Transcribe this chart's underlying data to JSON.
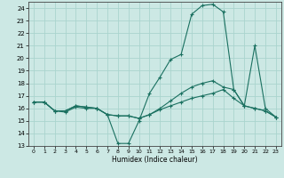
{
  "xlabel": "Humidex (Indice chaleur)",
  "background_color": "#cce8e4",
  "grid_color": "#aad4ce",
  "line_color": "#1a7060",
  "xlim": [
    -0.5,
    23.5
  ],
  "ylim": [
    13,
    24.5
  ],
  "xticks": [
    0,
    1,
    2,
    3,
    4,
    5,
    6,
    7,
    8,
    9,
    10,
    11,
    12,
    13,
    14,
    15,
    16,
    17,
    18,
    19,
    20,
    21,
    22,
    23
  ],
  "yticks": [
    13,
    14,
    15,
    16,
    17,
    18,
    19,
    20,
    21,
    22,
    23,
    24
  ],
  "line1_x": [
    0,
    1,
    2,
    3,
    4,
    5,
    6,
    7,
    8,
    9,
    10,
    11,
    12,
    13,
    14,
    15,
    16,
    17,
    18,
    19,
    20,
    21,
    22,
    23
  ],
  "line1_y": [
    16.5,
    16.5,
    15.8,
    15.8,
    16.2,
    16.1,
    16.0,
    15.5,
    13.2,
    13.2,
    15.0,
    17.2,
    18.5,
    19.9,
    20.3,
    23.5,
    24.2,
    24.3,
    23.7,
    17.5,
    16.2,
    16.0,
    15.8,
    15.3
  ],
  "line2_x": [
    0,
    1,
    2,
    3,
    4,
    5,
    6,
    7,
    8,
    9,
    10,
    11,
    12,
    13,
    14,
    15,
    16,
    17,
    18,
    19,
    20,
    21,
    22,
    23
  ],
  "line2_y": [
    16.5,
    16.5,
    15.8,
    15.7,
    16.1,
    16.0,
    16.0,
    15.5,
    15.4,
    15.4,
    15.2,
    15.5,
    16.0,
    16.6,
    17.2,
    17.7,
    18.0,
    18.2,
    17.7,
    17.5,
    16.2,
    21.0,
    16.0,
    15.3
  ],
  "line3_x": [
    0,
    1,
    2,
    3,
    4,
    5,
    6,
    7,
    8,
    9,
    10,
    11,
    12,
    13,
    14,
    15,
    16,
    17,
    18,
    19,
    20,
    21,
    22,
    23
  ],
  "line3_y": [
    16.5,
    16.5,
    15.8,
    15.8,
    16.2,
    16.1,
    16.0,
    15.5,
    15.4,
    15.4,
    15.2,
    15.5,
    15.9,
    16.2,
    16.5,
    16.8,
    17.0,
    17.2,
    17.5,
    16.8,
    16.2,
    16.0,
    15.8,
    15.3
  ]
}
